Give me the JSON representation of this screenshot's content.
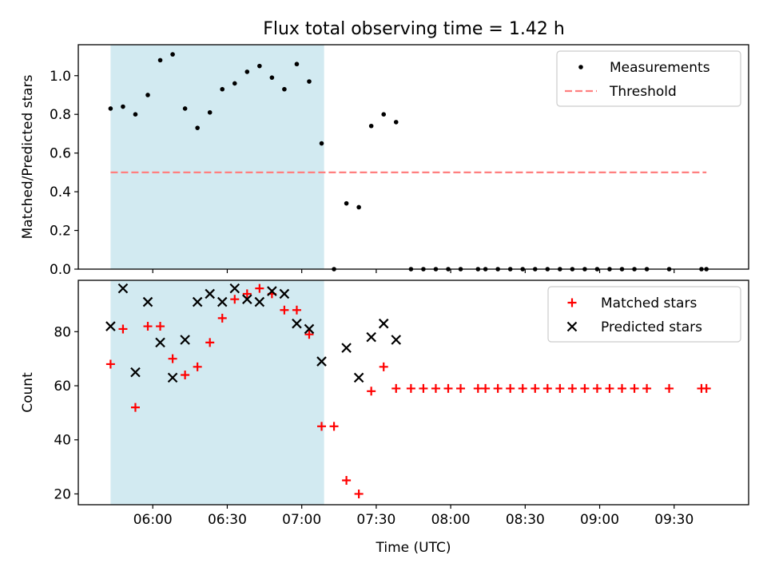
{
  "figure": {
    "title": "Flux total observing time = 1.42 h"
  },
  "colors": {
    "shade": "#add8e6",
    "threshold": "#ff7f7f",
    "matched": "#ff0000",
    "predicted": "#000000",
    "measurements": "#000000"
  },
  "chart_data": [
    {
      "type": "scatter",
      "title": "Flux total observing time = 1.42 h",
      "ylabel": "Matched/Predicted stars",
      "xlim": [
        "05:30",
        "10:00"
      ],
      "ylim": [
        0,
        1.16
      ],
      "yticks": [
        "0.0",
        "0.2",
        "0.4",
        "0.6",
        "0.8",
        "1.0"
      ],
      "grid": false,
      "legend": {
        "position": "upper right",
        "entries": [
          "Measurements",
          "Threshold"
        ]
      },
      "shaded_interval": [
        "05:43",
        "07:09"
      ],
      "series": [
        {
          "name": "Measurements",
          "marker": "dot",
          "points": [
            [
              "05:43",
              0.83
            ],
            [
              "05:48",
              0.84
            ],
            [
              "05:53",
              0.8
            ],
            [
              "05:58",
              0.9
            ],
            [
              "06:03",
              1.08
            ],
            [
              "06:08",
              1.11
            ],
            [
              "06:13",
              0.83
            ],
            [
              "06:18",
              0.73
            ],
            [
              "06:23",
              0.81
            ],
            [
              "06:28",
              0.93
            ],
            [
              "06:33",
              0.96
            ],
            [
              "06:38",
              1.02
            ],
            [
              "06:43",
              1.05
            ],
            [
              "06:48",
              0.99
            ],
            [
              "06:53",
              0.93
            ],
            [
              "06:58",
              1.06
            ],
            [
              "07:03",
              0.97
            ],
            [
              "07:08",
              0.65
            ],
            [
              "07:13",
              0.0
            ],
            [
              "07:18",
              0.34
            ],
            [
              "07:23",
              0.32
            ],
            [
              "07:28",
              0.74
            ],
            [
              "07:33",
              0.8
            ],
            [
              "07:38",
              0.76
            ],
            [
              "07:44",
              0.0
            ],
            [
              "07:49",
              0.0
            ],
            [
              "07:54",
              0.0
            ],
            [
              "07:59",
              0.0
            ],
            [
              "08:04",
              0.0
            ],
            [
              "08:11",
              0.0
            ],
            [
              "08:14",
              0.0
            ],
            [
              "08:19",
              0.0
            ],
            [
              "08:24",
              0.0
            ],
            [
              "08:29",
              0.0
            ],
            [
              "08:34",
              0.0
            ],
            [
              "08:39",
              0.0
            ],
            [
              "08:44",
              0.0
            ],
            [
              "08:49",
              0.0
            ],
            [
              "08:54",
              0.0
            ],
            [
              "08:59",
              0.0
            ],
            [
              "09:04",
              0.0
            ],
            [
              "09:09",
              0.0
            ],
            [
              "09:14",
              0.0
            ],
            [
              "09:19",
              0.0
            ],
            [
              "09:28",
              0.0
            ],
            [
              "09:41",
              0.0
            ],
            [
              "09:43",
              0.0
            ]
          ]
        },
        {
          "name": "Threshold",
          "marker": "dashed-line",
          "points": [
            [
              "05:43",
              0.5
            ],
            [
              "09:43",
              0.5
            ]
          ]
        }
      ]
    },
    {
      "type": "scatter",
      "xlabel": "Time (UTC)",
      "ylabel": "Count",
      "xlim": [
        "05:30",
        "10:00"
      ],
      "ylim": [
        16,
        99
      ],
      "xticks": [
        "06:00",
        "06:30",
        "07:00",
        "07:30",
        "08:00",
        "08:30",
        "09:00",
        "09:30"
      ],
      "yticks": [
        "20",
        "40",
        "60",
        "80"
      ],
      "grid": false,
      "legend": {
        "position": "upper right",
        "entries": [
          "Matched stars",
          "Predicted stars"
        ]
      },
      "shaded_interval": [
        "05:43",
        "07:09"
      ],
      "series": [
        {
          "name": "Matched stars",
          "marker": "plus",
          "points": [
            [
              "05:43",
              68
            ],
            [
              "05:48",
              81
            ],
            [
              "05:53",
              52
            ],
            [
              "05:58",
              82
            ],
            [
              "06:03",
              82
            ],
            [
              "06:08",
              70
            ],
            [
              "06:13",
              64
            ],
            [
              "06:18",
              67
            ],
            [
              "06:23",
              76
            ],
            [
              "06:28",
              85
            ],
            [
              "06:33",
              92
            ],
            [
              "06:38",
              94
            ],
            [
              "06:43",
              96
            ],
            [
              "06:48",
              94
            ],
            [
              "06:53",
              88
            ],
            [
              "06:58",
              88
            ],
            [
              "07:03",
              79
            ],
            [
              "07:08",
              45
            ],
            [
              "07:13",
              45
            ],
            [
              "07:18",
              25
            ],
            [
              "07:23",
              20
            ],
            [
              "07:28",
              58
            ],
            [
              "07:33",
              67
            ],
            [
              "07:38",
              59
            ],
            [
              "07:44",
              59
            ],
            [
              "07:49",
              59
            ],
            [
              "07:54",
              59
            ],
            [
              "07:59",
              59
            ],
            [
              "08:04",
              59
            ],
            [
              "08:11",
              59
            ],
            [
              "08:14",
              59
            ],
            [
              "08:19",
              59
            ],
            [
              "08:24",
              59
            ],
            [
              "08:29",
              59
            ],
            [
              "08:34",
              59
            ],
            [
              "08:39",
              59
            ],
            [
              "08:44",
              59
            ],
            [
              "08:49",
              59
            ],
            [
              "08:54",
              59
            ],
            [
              "08:59",
              59
            ],
            [
              "09:04",
              59
            ],
            [
              "09:09",
              59
            ],
            [
              "09:14",
              59
            ],
            [
              "09:19",
              59
            ],
            [
              "09:28",
              59
            ],
            [
              "09:41",
              59
            ],
            [
              "09:43",
              59
            ]
          ]
        },
        {
          "name": "Predicted stars",
          "marker": "x",
          "points": [
            [
              "05:43",
              82
            ],
            [
              "05:48",
              96
            ],
            [
              "05:53",
              65
            ],
            [
              "05:58",
              91
            ],
            [
              "06:03",
              76
            ],
            [
              "06:08",
              63
            ],
            [
              "06:13",
              77
            ],
            [
              "06:18",
              91
            ],
            [
              "06:23",
              94
            ],
            [
              "06:28",
              91
            ],
            [
              "06:33",
              96
            ],
            [
              "06:38",
              92
            ],
            [
              "06:43",
              91
            ],
            [
              "06:48",
              95
            ],
            [
              "06:53",
              94
            ],
            [
              "06:58",
              83
            ],
            [
              "07:03",
              81
            ],
            [
              "07:08",
              69
            ],
            [
              "07:18",
              74
            ],
            [
              "07:23",
              63
            ],
            [
              "07:28",
              78
            ],
            [
              "07:33",
              83
            ],
            [
              "07:38",
              77
            ]
          ]
        }
      ]
    }
  ]
}
